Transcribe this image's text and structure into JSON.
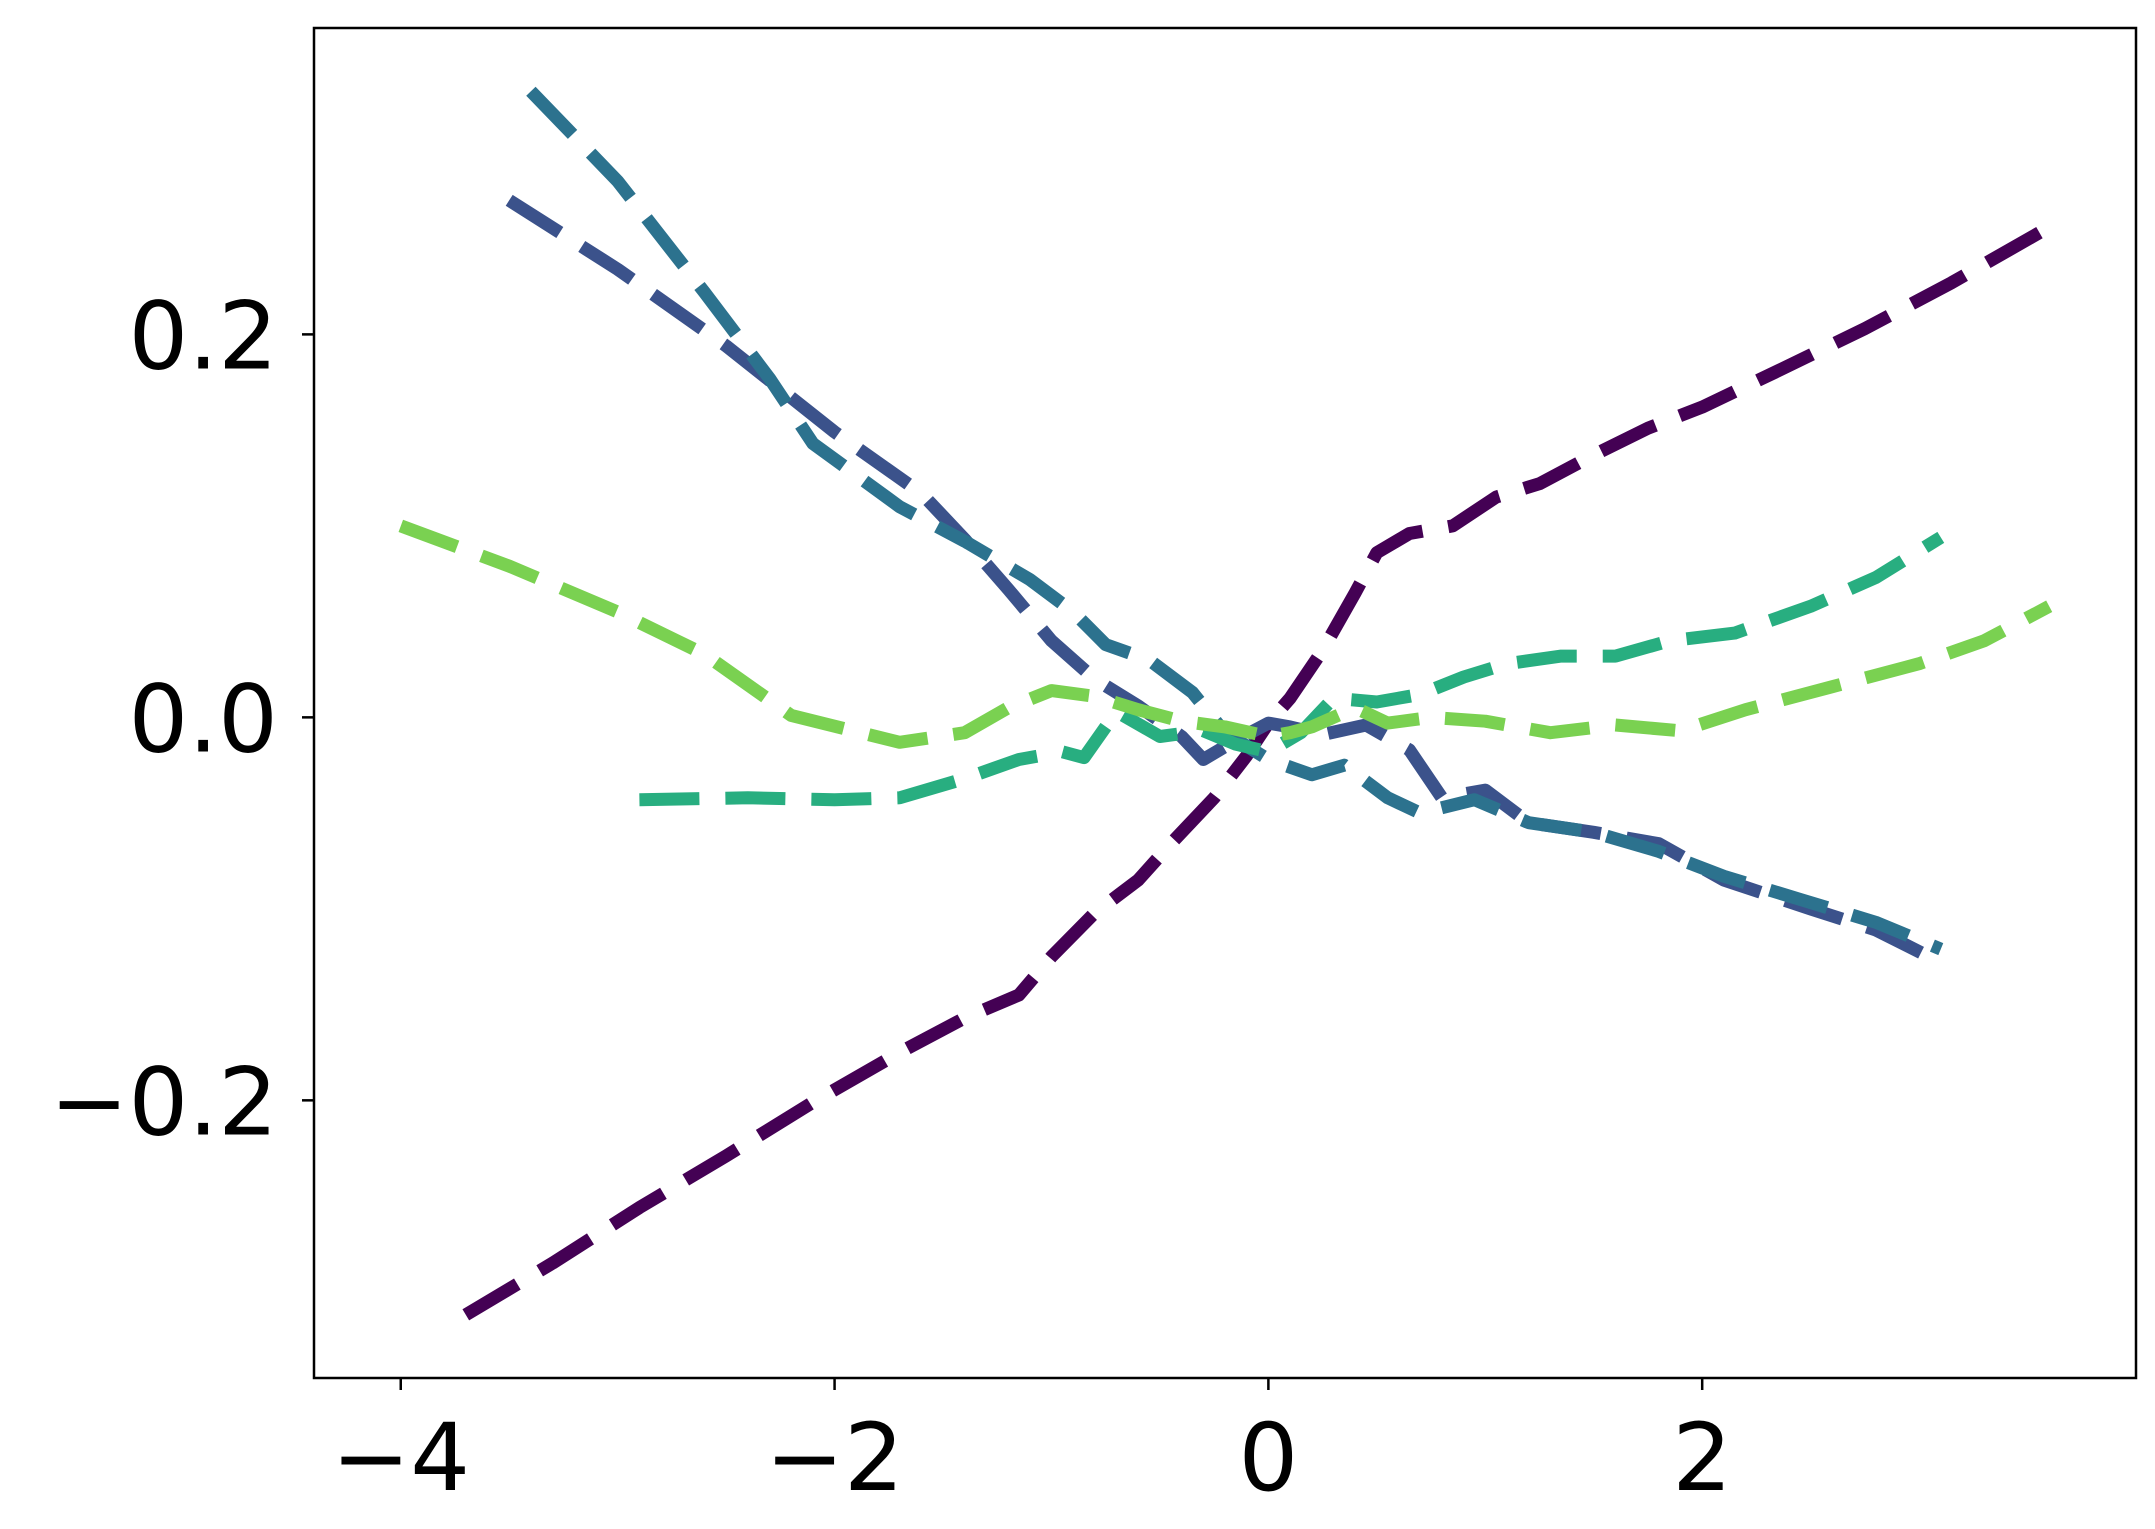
{
  "chart_data": {
    "type": "line",
    "title": "",
    "xlabel": "",
    "ylabel": "",
    "xlim": [
      -4.4,
      4.0
    ],
    "ylim": [
      -0.345,
      0.36
    ],
    "xticks": [
      -4,
      -2,
      0,
      2
    ],
    "xtick_labels": [
      "−4",
      "−2",
      "0",
      "2"
    ],
    "yticks": [
      -0.2,
      0.0,
      0.2
    ],
    "ytick_labels": [
      "−0.2",
      "0.0",
      "0.2"
    ],
    "grid": false,
    "legend": "none",
    "line_style": "dashed",
    "series": [
      {
        "color": "#440154",
        "points": [
          [
            -3.7,
            -0.312
          ],
          [
            -3.3,
            -0.285
          ],
          [
            -2.9,
            -0.256
          ],
          [
            -2.5,
            -0.229
          ],
          [
            -2.1,
            -0.201
          ],
          [
            -1.7,
            -0.175
          ],
          [
            -1.4,
            -0.157
          ],
          [
            -1.15,
            -0.145
          ],
          [
            -1.0,
            -0.125
          ],
          [
            -0.8,
            -0.102
          ],
          [
            -0.6,
            -0.085
          ],
          [
            -0.45,
            -0.066
          ],
          [
            -0.25,
            -0.042
          ],
          [
            -0.1,
            -0.02
          ],
          [
            0.0,
            -0.003
          ],
          [
            0.1,
            0.01
          ],
          [
            0.25,
            0.035
          ],
          [
            0.4,
            0.065
          ],
          [
            0.5,
            0.086
          ],
          [
            0.65,
            0.096
          ],
          [
            0.85,
            0.1
          ],
          [
            1.05,
            0.115
          ],
          [
            1.25,
            0.122
          ],
          [
            1.5,
            0.137
          ],
          [
            1.75,
            0.151
          ],
          [
            2.0,
            0.162
          ],
          [
            2.35,
            0.181
          ],
          [
            2.75,
            0.203
          ],
          [
            3.15,
            0.227
          ],
          [
            3.6,
            0.256
          ]
        ]
      },
      {
        "color": "#3b528b",
        "points": [
          [
            -3.5,
            0.27
          ],
          [
            -3.0,
            0.234
          ],
          [
            -2.5,
            0.194
          ],
          [
            -2.0,
            0.149
          ],
          [
            -1.6,
            0.117
          ],
          [
            -1.4,
            0.093
          ],
          [
            -1.2,
            0.067
          ],
          [
            -1.0,
            0.04
          ],
          [
            -0.8,
            0.02
          ],
          [
            -0.6,
            0.006
          ],
          [
            -0.4,
            -0.01
          ],
          [
            -0.3,
            -0.022
          ],
          [
            -0.15,
            -0.012
          ],
          [
            0.0,
            -0.003
          ],
          [
            0.1,
            -0.005
          ],
          [
            0.25,
            -0.009
          ],
          [
            0.45,
            -0.004
          ],
          [
            0.65,
            -0.017
          ],
          [
            0.8,
            -0.042
          ],
          [
            1.0,
            -0.038
          ],
          [
            1.2,
            -0.055
          ],
          [
            1.5,
            -0.06
          ],
          [
            1.8,
            -0.066
          ],
          [
            2.1,
            -0.085
          ],
          [
            2.5,
            -0.1
          ],
          [
            2.8,
            -0.111
          ],
          [
            3.1,
            -0.128
          ]
        ]
      },
      {
        "color": "#2c728e",
        "points": [
          [
            -3.4,
            0.327
          ],
          [
            -3.0,
            0.28
          ],
          [
            -2.6,
            0.222
          ],
          [
            -2.3,
            0.177
          ],
          [
            -2.1,
            0.143
          ],
          [
            -1.7,
            0.11
          ],
          [
            -1.4,
            0.092
          ],
          [
            -1.1,
            0.072
          ],
          [
            -0.9,
            0.055
          ],
          [
            -0.75,
            0.038
          ],
          [
            -0.55,
            0.03
          ],
          [
            -0.35,
            0.013
          ],
          [
            -0.2,
            -0.008
          ],
          [
            0.0,
            -0.022
          ],
          [
            0.2,
            -0.03
          ],
          [
            0.35,
            -0.025
          ],
          [
            0.55,
            -0.042
          ],
          [
            0.7,
            -0.05
          ],
          [
            0.95,
            -0.043
          ],
          [
            1.2,
            -0.055
          ],
          [
            1.5,
            -0.06
          ],
          [
            1.8,
            -0.07
          ],
          [
            2.1,
            -0.083
          ],
          [
            2.45,
            -0.095
          ],
          [
            2.8,
            -0.107
          ],
          [
            3.1,
            -0.121
          ]
        ]
      },
      {
        "color": "#28ae80",
        "points": [
          [
            -2.9,
            -0.043
          ],
          [
            -2.4,
            -0.042
          ],
          [
            -2.0,
            -0.043
          ],
          [
            -1.7,
            -0.042
          ],
          [
            -1.4,
            -0.032
          ],
          [
            -1.15,
            -0.022
          ],
          [
            -0.95,
            -0.018
          ],
          [
            -0.85,
            -0.021
          ],
          [
            -0.7,
            0.003
          ],
          [
            -0.5,
            -0.01
          ],
          [
            -0.3,
            -0.007
          ],
          [
            -0.15,
            -0.014
          ],
          [
            0.0,
            -0.018
          ],
          [
            0.15,
            -0.008
          ],
          [
            0.3,
            0.01
          ],
          [
            0.5,
            0.008
          ],
          [
            0.7,
            0.012
          ],
          [
            0.9,
            0.021
          ],
          [
            1.1,
            0.028
          ],
          [
            1.35,
            0.032
          ],
          [
            1.6,
            0.032
          ],
          [
            1.85,
            0.04
          ],
          [
            2.15,
            0.044
          ],
          [
            2.5,
            0.058
          ],
          [
            2.8,
            0.073
          ],
          [
            3.1,
            0.094
          ]
        ]
      },
      {
        "color": "#7ad151",
        "points": [
          [
            -4.0,
            0.1
          ],
          [
            -3.5,
            0.079
          ],
          [
            -3.0,
            0.055
          ],
          [
            -2.6,
            0.033
          ],
          [
            -2.2,
            0.001
          ],
          [
            -1.7,
            -0.013
          ],
          [
            -1.4,
            -0.008
          ],
          [
            -1.2,
            0.005
          ],
          [
            -1.0,
            0.014
          ],
          [
            -0.8,
            0.011
          ],
          [
            -0.6,
            0.004
          ],
          [
            -0.4,
            -0.002
          ],
          [
            -0.2,
            -0.005
          ],
          [
            0.0,
            -0.01
          ],
          [
            0.1,
            -0.008
          ],
          [
            0.2,
            -0.005
          ],
          [
            0.4,
            0.005
          ],
          [
            0.55,
            -0.003
          ],
          [
            0.75,
            0.0
          ],
          [
            1.0,
            -0.002
          ],
          [
            1.3,
            -0.008
          ],
          [
            1.6,
            -0.004
          ],
          [
            1.9,
            -0.007
          ],
          [
            2.2,
            0.004
          ],
          [
            2.6,
            0.016
          ],
          [
            3.0,
            0.028
          ],
          [
            3.3,
            0.04
          ],
          [
            3.6,
            0.058
          ]
        ]
      }
    ]
  }
}
